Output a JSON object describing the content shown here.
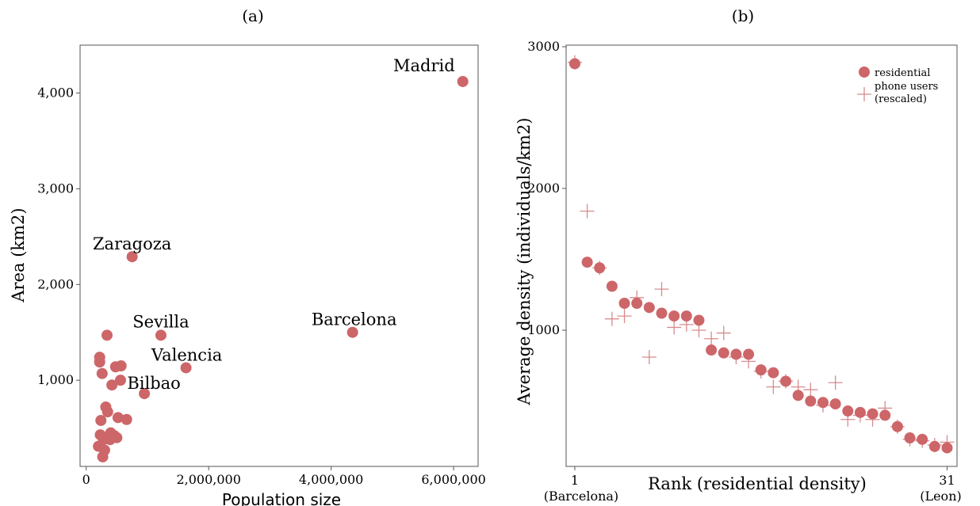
{
  "chart_data": [
    {
      "type": "scatter",
      "panel": "(a)",
      "xlabel": "Population size",
      "ylabel": "Area (km2)",
      "xlim": [
        -100000,
        6400000
      ],
      "ylim": [
        100,
        4500
      ],
      "xticks": [
        0,
        2000000,
        4000000,
        6000000
      ],
      "xtick_labels": [
        "0",
        "2,000,000",
        "4,000,000",
        "6,000,000"
      ],
      "yticks": [
        1000,
        2000,
        3000,
        4000
      ],
      "ytick_labels": [
        "1,000",
        "2,000",
        "3,000",
        "4,000"
      ],
      "color": "#cd6669",
      "points": [
        {
          "x": 6150000,
          "y": 4120,
          "label": "Madrid"
        },
        {
          "x": 4350000,
          "y": 1500,
          "label": "Barcelona"
        },
        {
          "x": 750000,
          "y": 2290,
          "label": "Zaragoza"
        },
        {
          "x": 1220000,
          "y": 1470,
          "label": "Sevilla"
        },
        {
          "x": 1630000,
          "y": 1130,
          "label": "Valencia"
        },
        {
          "x": 950000,
          "y": 860,
          "label": "Bilbao"
        },
        {
          "x": 340000,
          "y": 1470
        },
        {
          "x": 220000,
          "y": 1240
        },
        {
          "x": 220000,
          "y": 1190
        },
        {
          "x": 260000,
          "y": 1070
        },
        {
          "x": 480000,
          "y": 1140
        },
        {
          "x": 570000,
          "y": 1150
        },
        {
          "x": 560000,
          "y": 1000
        },
        {
          "x": 420000,
          "y": 950
        },
        {
          "x": 320000,
          "y": 720
        },
        {
          "x": 350000,
          "y": 670
        },
        {
          "x": 240000,
          "y": 580
        },
        {
          "x": 520000,
          "y": 610
        },
        {
          "x": 660000,
          "y": 590
        },
        {
          "x": 230000,
          "y": 430
        },
        {
          "x": 400000,
          "y": 450
        },
        {
          "x": 460000,
          "y": 420
        },
        {
          "x": 390000,
          "y": 380
        },
        {
          "x": 500000,
          "y": 400
        },
        {
          "x": 280000,
          "y": 380
        },
        {
          "x": 200000,
          "y": 310
        },
        {
          "x": 300000,
          "y": 270
        },
        {
          "x": 270000,
          "y": 200
        }
      ]
    },
    {
      "type": "scatter",
      "panel": "(b)",
      "xlabel": "Rank (residential density)",
      "ylabel": "Average density (individuals/km2)",
      "xlim": [
        0.3,
        31.8
      ],
      "ylim": [
        0,
        3000
      ],
      "xticks": [
        1,
        31
      ],
      "xtick_labels": [
        "1",
        "31"
      ],
      "xtick_sublabels": [
        "(Barcelona)",
        "(Leon)"
      ],
      "yticks": [
        1000,
        2000,
        3000
      ],
      "ytick_labels": [
        "1000",
        "2000",
        "3000"
      ],
      "color": "#cd6669",
      "legend_position": "top-right",
      "legend": [
        "residential",
        "phone users (rescaled)"
      ],
      "legend_lines": [
        "residential",
        "phone users",
        "(rescaled)"
      ],
      "series": [
        {
          "name": "residential",
          "marker": "circle",
          "x": [
            1,
            2,
            3,
            4,
            5,
            6,
            7,
            8,
            9,
            10,
            11,
            12,
            13,
            14,
            15,
            16,
            17,
            18,
            19,
            20,
            21,
            22,
            23,
            24,
            25,
            26,
            27,
            28,
            29,
            30,
            31
          ],
          "y": [
            2880,
            1480,
            1440,
            1310,
            1190,
            1190,
            1160,
            1120,
            1100,
            1100,
            1070,
            860,
            840,
            830,
            830,
            720,
            700,
            640,
            540,
            500,
            490,
            480,
            430,
            420,
            410,
            400,
            320,
            240,
            230,
            180,
            170
          ]
        },
        {
          "name": "phone users (rescaled)",
          "marker": "plus",
          "x": [
            1,
            2,
            3,
            4,
            5,
            6,
            7,
            8,
            9,
            10,
            11,
            12,
            13,
            14,
            15,
            16,
            17,
            18,
            19,
            20,
            21,
            22,
            23,
            24,
            25,
            26,
            27,
            28,
            29,
            30,
            31
          ],
          "y": [
            2890,
            1840,
            1440,
            1080,
            1100,
            1230,
            810,
            1290,
            1020,
            1040,
            1000,
            940,
            980,
            810,
            780,
            710,
            600,
            640,
            600,
            580,
            470,
            630,
            370,
            400,
            370,
            450,
            320,
            230,
            220,
            190,
            210
          ]
        }
      ]
    }
  ]
}
